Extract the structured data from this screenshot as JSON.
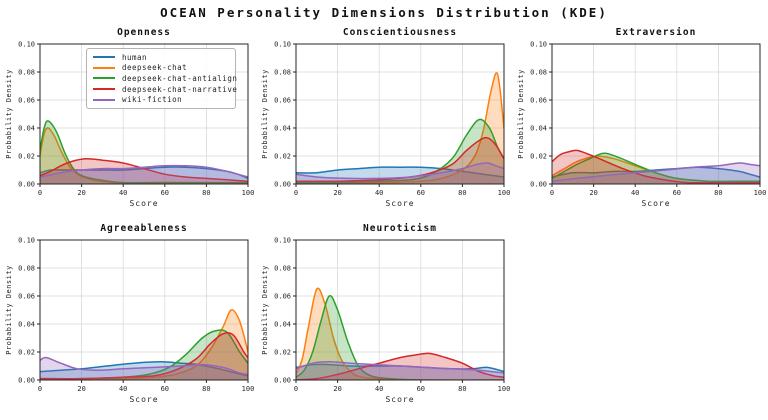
{
  "title": "OCEAN Personality Dimensions Distribution (KDE)",
  "style": {
    "grid_color": "#d9d9d9",
    "spine_color": "#262626",
    "text_color": "#262626",
    "fill_opacity": 0.27,
    "line_width": 1.5
  },
  "axes": {
    "xlabel": "Score",
    "ylabel": "Probability Density",
    "xlim": [
      0,
      100
    ],
    "ylim": [
      0,
      0.1
    ],
    "xticks": [
      0,
      20,
      40,
      60,
      80,
      100
    ],
    "yticks": [
      0.0,
      0.02,
      0.04,
      0.06,
      0.08,
      0.1
    ],
    "grid": true,
    "legend_position": "upper-right-first-subplot"
  },
  "legend": {
    "items": [
      {
        "label": "human",
        "color": "#1f77b4"
      },
      {
        "label": "deepseek-chat",
        "color": "#ff7f0e"
      },
      {
        "label": "deepseek-chat-antialign",
        "color": "#2ca02c"
      },
      {
        "label": "deepseek-chat-narrative",
        "color": "#d62728"
      },
      {
        "label": "wiki-fiction",
        "color": "#9467bd"
      }
    ]
  },
  "chart_data": [
    {
      "type": "area",
      "title": "Openness",
      "series": [
        {
          "name": "human",
          "color": "#1f77b4",
          "x": [
            0,
            5,
            10,
            20,
            30,
            40,
            50,
            60,
            70,
            80,
            90,
            95,
            100
          ],
          "y": [
            0.008,
            0.01,
            0.01,
            0.01,
            0.01,
            0.01,
            0.011,
            0.012,
            0.012,
            0.011,
            0.009,
            0.007,
            0.004
          ]
        },
        {
          "name": "deepseek-chat",
          "color": "#ff7f0e",
          "x": [
            0,
            2,
            4,
            7,
            10,
            14,
            18,
            25,
            35,
            50,
            70,
            100
          ],
          "y": [
            0.02,
            0.036,
            0.04,
            0.034,
            0.024,
            0.013,
            0.007,
            0.003,
            0.001,
            0.001,
            0.001,
            0.0
          ]
        },
        {
          "name": "deepseek-chat-antialign",
          "color": "#2ca02c",
          "x": [
            0,
            2,
            4,
            8,
            12,
            16,
            20,
            28,
            40,
            60,
            80,
            100
          ],
          "y": [
            0.024,
            0.04,
            0.045,
            0.037,
            0.022,
            0.011,
            0.006,
            0.003,
            0.001,
            0.001,
            0.001,
            0.001
          ]
        },
        {
          "name": "deepseek-chat-narrative",
          "color": "#d62728",
          "x": [
            0,
            5,
            10,
            15,
            22,
            30,
            40,
            50,
            60,
            70,
            80,
            90,
            100
          ],
          "y": [
            0.006,
            0.009,
            0.013,
            0.016,
            0.018,
            0.017,
            0.015,
            0.011,
            0.007,
            0.005,
            0.004,
            0.003,
            0.002
          ]
        },
        {
          "name": "wiki-fiction",
          "color": "#9467bd",
          "x": [
            0,
            10,
            20,
            30,
            40,
            50,
            60,
            70,
            80,
            90,
            95,
            100
          ],
          "y": [
            0.005,
            0.008,
            0.01,
            0.011,
            0.011,
            0.012,
            0.013,
            0.013,
            0.012,
            0.009,
            0.007,
            0.005
          ]
        }
      ]
    },
    {
      "type": "area",
      "title": "Conscientiousness",
      "series": [
        {
          "name": "human",
          "color": "#1f77b4",
          "x": [
            0,
            10,
            20,
            30,
            40,
            50,
            60,
            70,
            80,
            90,
            100
          ],
          "y": [
            0.008,
            0.008,
            0.01,
            0.011,
            0.012,
            0.012,
            0.012,
            0.011,
            0.009,
            0.007,
            0.005
          ]
        },
        {
          "name": "deepseek-chat",
          "color": "#ff7f0e",
          "x": [
            0,
            20,
            40,
            60,
            70,
            80,
            86,
            90,
            94,
            97,
            100
          ],
          "y": [
            0.001,
            0.001,
            0.001,
            0.002,
            0.004,
            0.01,
            0.02,
            0.038,
            0.068,
            0.078,
            0.04
          ]
        },
        {
          "name": "deepseek-chat-antialign",
          "color": "#2ca02c",
          "x": [
            0,
            20,
            40,
            55,
            65,
            75,
            82,
            88,
            93,
            97,
            100
          ],
          "y": [
            0.001,
            0.001,
            0.002,
            0.003,
            0.007,
            0.018,
            0.035,
            0.046,
            0.04,
            0.026,
            0.018
          ]
        },
        {
          "name": "deepseek-chat-narrative",
          "color": "#d62728",
          "x": [
            0,
            20,
            40,
            55,
            65,
            75,
            82,
            88,
            92,
            96,
            100
          ],
          "y": [
            0.002,
            0.002,
            0.003,
            0.005,
            0.008,
            0.014,
            0.024,
            0.031,
            0.033,
            0.028,
            0.018
          ]
        },
        {
          "name": "wiki-fiction",
          "color": "#9467bd",
          "x": [
            0,
            10,
            25,
            40,
            55,
            70,
            80,
            87,
            92,
            96,
            100
          ],
          "y": [
            0.007,
            0.005,
            0.004,
            0.004,
            0.005,
            0.008,
            0.011,
            0.014,
            0.015,
            0.013,
            0.011
          ]
        }
      ]
    },
    {
      "type": "area",
      "title": "Extraversion",
      "series": [
        {
          "name": "human",
          "color": "#1f77b4",
          "x": [
            0,
            10,
            20,
            30,
            40,
            50,
            60,
            70,
            80,
            90,
            95,
            100
          ],
          "y": [
            0.005,
            0.008,
            0.008,
            0.009,
            0.009,
            0.01,
            0.011,
            0.012,
            0.011,
            0.009,
            0.007,
            0.005
          ]
        },
        {
          "name": "deepseek-chat",
          "color": "#ff7f0e",
          "x": [
            0,
            6,
            12,
            18,
            22,
            30,
            40,
            50,
            60,
            75,
            90,
            100
          ],
          "y": [
            0.006,
            0.011,
            0.016,
            0.019,
            0.02,
            0.018,
            0.013,
            0.008,
            0.004,
            0.002,
            0.001,
            0.001
          ]
        },
        {
          "name": "deepseek-chat-antialign",
          "color": "#2ca02c",
          "x": [
            0,
            6,
            12,
            18,
            25,
            32,
            40,
            50,
            60,
            75,
            90,
            100
          ],
          "y": [
            0.004,
            0.009,
            0.014,
            0.018,
            0.022,
            0.019,
            0.014,
            0.008,
            0.004,
            0.002,
            0.002,
            0.002
          ]
        },
        {
          "name": "deepseek-chat-narrative",
          "color": "#d62728",
          "x": [
            0,
            4,
            8,
            12,
            18,
            26,
            34,
            44,
            54,
            65,
            80,
            100
          ],
          "y": [
            0.016,
            0.021,
            0.023,
            0.024,
            0.021,
            0.016,
            0.011,
            0.006,
            0.003,
            0.001,
            0.001,
            0.001
          ]
        },
        {
          "name": "wiki-fiction",
          "color": "#9467bd",
          "x": [
            0,
            12,
            25,
            40,
            55,
            68,
            80,
            90,
            95,
            100
          ],
          "y": [
            0.002,
            0.004,
            0.006,
            0.008,
            0.01,
            0.012,
            0.013,
            0.015,
            0.014,
            0.013
          ]
        }
      ]
    },
    {
      "type": "area",
      "title": "Agreeableness",
      "series": [
        {
          "name": "human",
          "color": "#1f77b4",
          "x": [
            0,
            10,
            20,
            32,
            45,
            58,
            68,
            76,
            86,
            94,
            100
          ],
          "y": [
            0.006,
            0.007,
            0.008,
            0.01,
            0.012,
            0.013,
            0.012,
            0.011,
            0.008,
            0.005,
            0.003
          ]
        },
        {
          "name": "deepseek-chat",
          "color": "#ff7f0e",
          "x": [
            0,
            20,
            40,
            55,
            65,
            75,
            82,
            88,
            92,
            96,
            100
          ],
          "y": [
            0.0,
            0.001,
            0.001,
            0.002,
            0.004,
            0.01,
            0.022,
            0.038,
            0.05,
            0.042,
            0.02
          ]
        },
        {
          "name": "deepseek-chat-antialign",
          "color": "#2ca02c",
          "x": [
            0,
            20,
            40,
            52,
            62,
            70,
            78,
            84,
            90,
            96,
            100
          ],
          "y": [
            0.001,
            0.001,
            0.002,
            0.004,
            0.009,
            0.018,
            0.03,
            0.035,
            0.034,
            0.02,
            0.012
          ]
        },
        {
          "name": "deepseek-chat-narrative",
          "color": "#d62728",
          "x": [
            0,
            20,
            40,
            55,
            65,
            75,
            82,
            88,
            93,
            98,
            100
          ],
          "y": [
            0.001,
            0.001,
            0.002,
            0.003,
            0.007,
            0.015,
            0.026,
            0.033,
            0.032,
            0.02,
            0.016
          ]
        },
        {
          "name": "wiki-fiction",
          "color": "#9467bd",
          "x": [
            0,
            3,
            10,
            18,
            28,
            40,
            55,
            68,
            78,
            88,
            96,
            100
          ],
          "y": [
            0.014,
            0.016,
            0.012,
            0.008,
            0.007,
            0.008,
            0.009,
            0.01,
            0.011,
            0.009,
            0.005,
            0.004
          ]
        }
      ]
    },
    {
      "type": "area",
      "title": "Neuroticism",
      "series": [
        {
          "name": "human",
          "color": "#1f77b4",
          "x": [
            0,
            8,
            16,
            26,
            38,
            50,
            62,
            75,
            85,
            92,
            100
          ],
          "y": [
            0.009,
            0.011,
            0.011,
            0.01,
            0.01,
            0.01,
            0.009,
            0.008,
            0.008,
            0.009,
            0.006
          ]
        },
        {
          "name": "deepseek-chat",
          "color": "#ff7f0e",
          "x": [
            0,
            3,
            6,
            10,
            14,
            18,
            22,
            27,
            32,
            40,
            60,
            100
          ],
          "y": [
            0.004,
            0.015,
            0.038,
            0.065,
            0.054,
            0.03,
            0.014,
            0.005,
            0.002,
            0.001,
            0.0,
            0.0
          ]
        },
        {
          "name": "deepseek-chat-antialign",
          "color": "#2ca02c",
          "x": [
            0,
            4,
            8,
            12,
            16,
            20,
            25,
            30,
            36,
            45,
            60,
            100
          ],
          "y": [
            0.002,
            0.007,
            0.02,
            0.042,
            0.06,
            0.05,
            0.027,
            0.01,
            0.003,
            0.001,
            0.0,
            0.0
          ]
        },
        {
          "name": "deepseek-chat-narrative",
          "color": "#d62728",
          "x": [
            0,
            10,
            20,
            30,
            40,
            50,
            58,
            64,
            72,
            80,
            88,
            95,
            100
          ],
          "y": [
            0.0,
            0.001,
            0.004,
            0.008,
            0.012,
            0.016,
            0.018,
            0.019,
            0.016,
            0.012,
            0.006,
            0.003,
            0.002
          ]
        },
        {
          "name": "wiki-fiction",
          "color": "#9467bd",
          "x": [
            0,
            8,
            16,
            26,
            38,
            50,
            62,
            75,
            88,
            100
          ],
          "y": [
            0.008,
            0.012,
            0.013,
            0.012,
            0.011,
            0.01,
            0.009,
            0.008,
            0.007,
            0.005
          ]
        }
      ]
    }
  ]
}
